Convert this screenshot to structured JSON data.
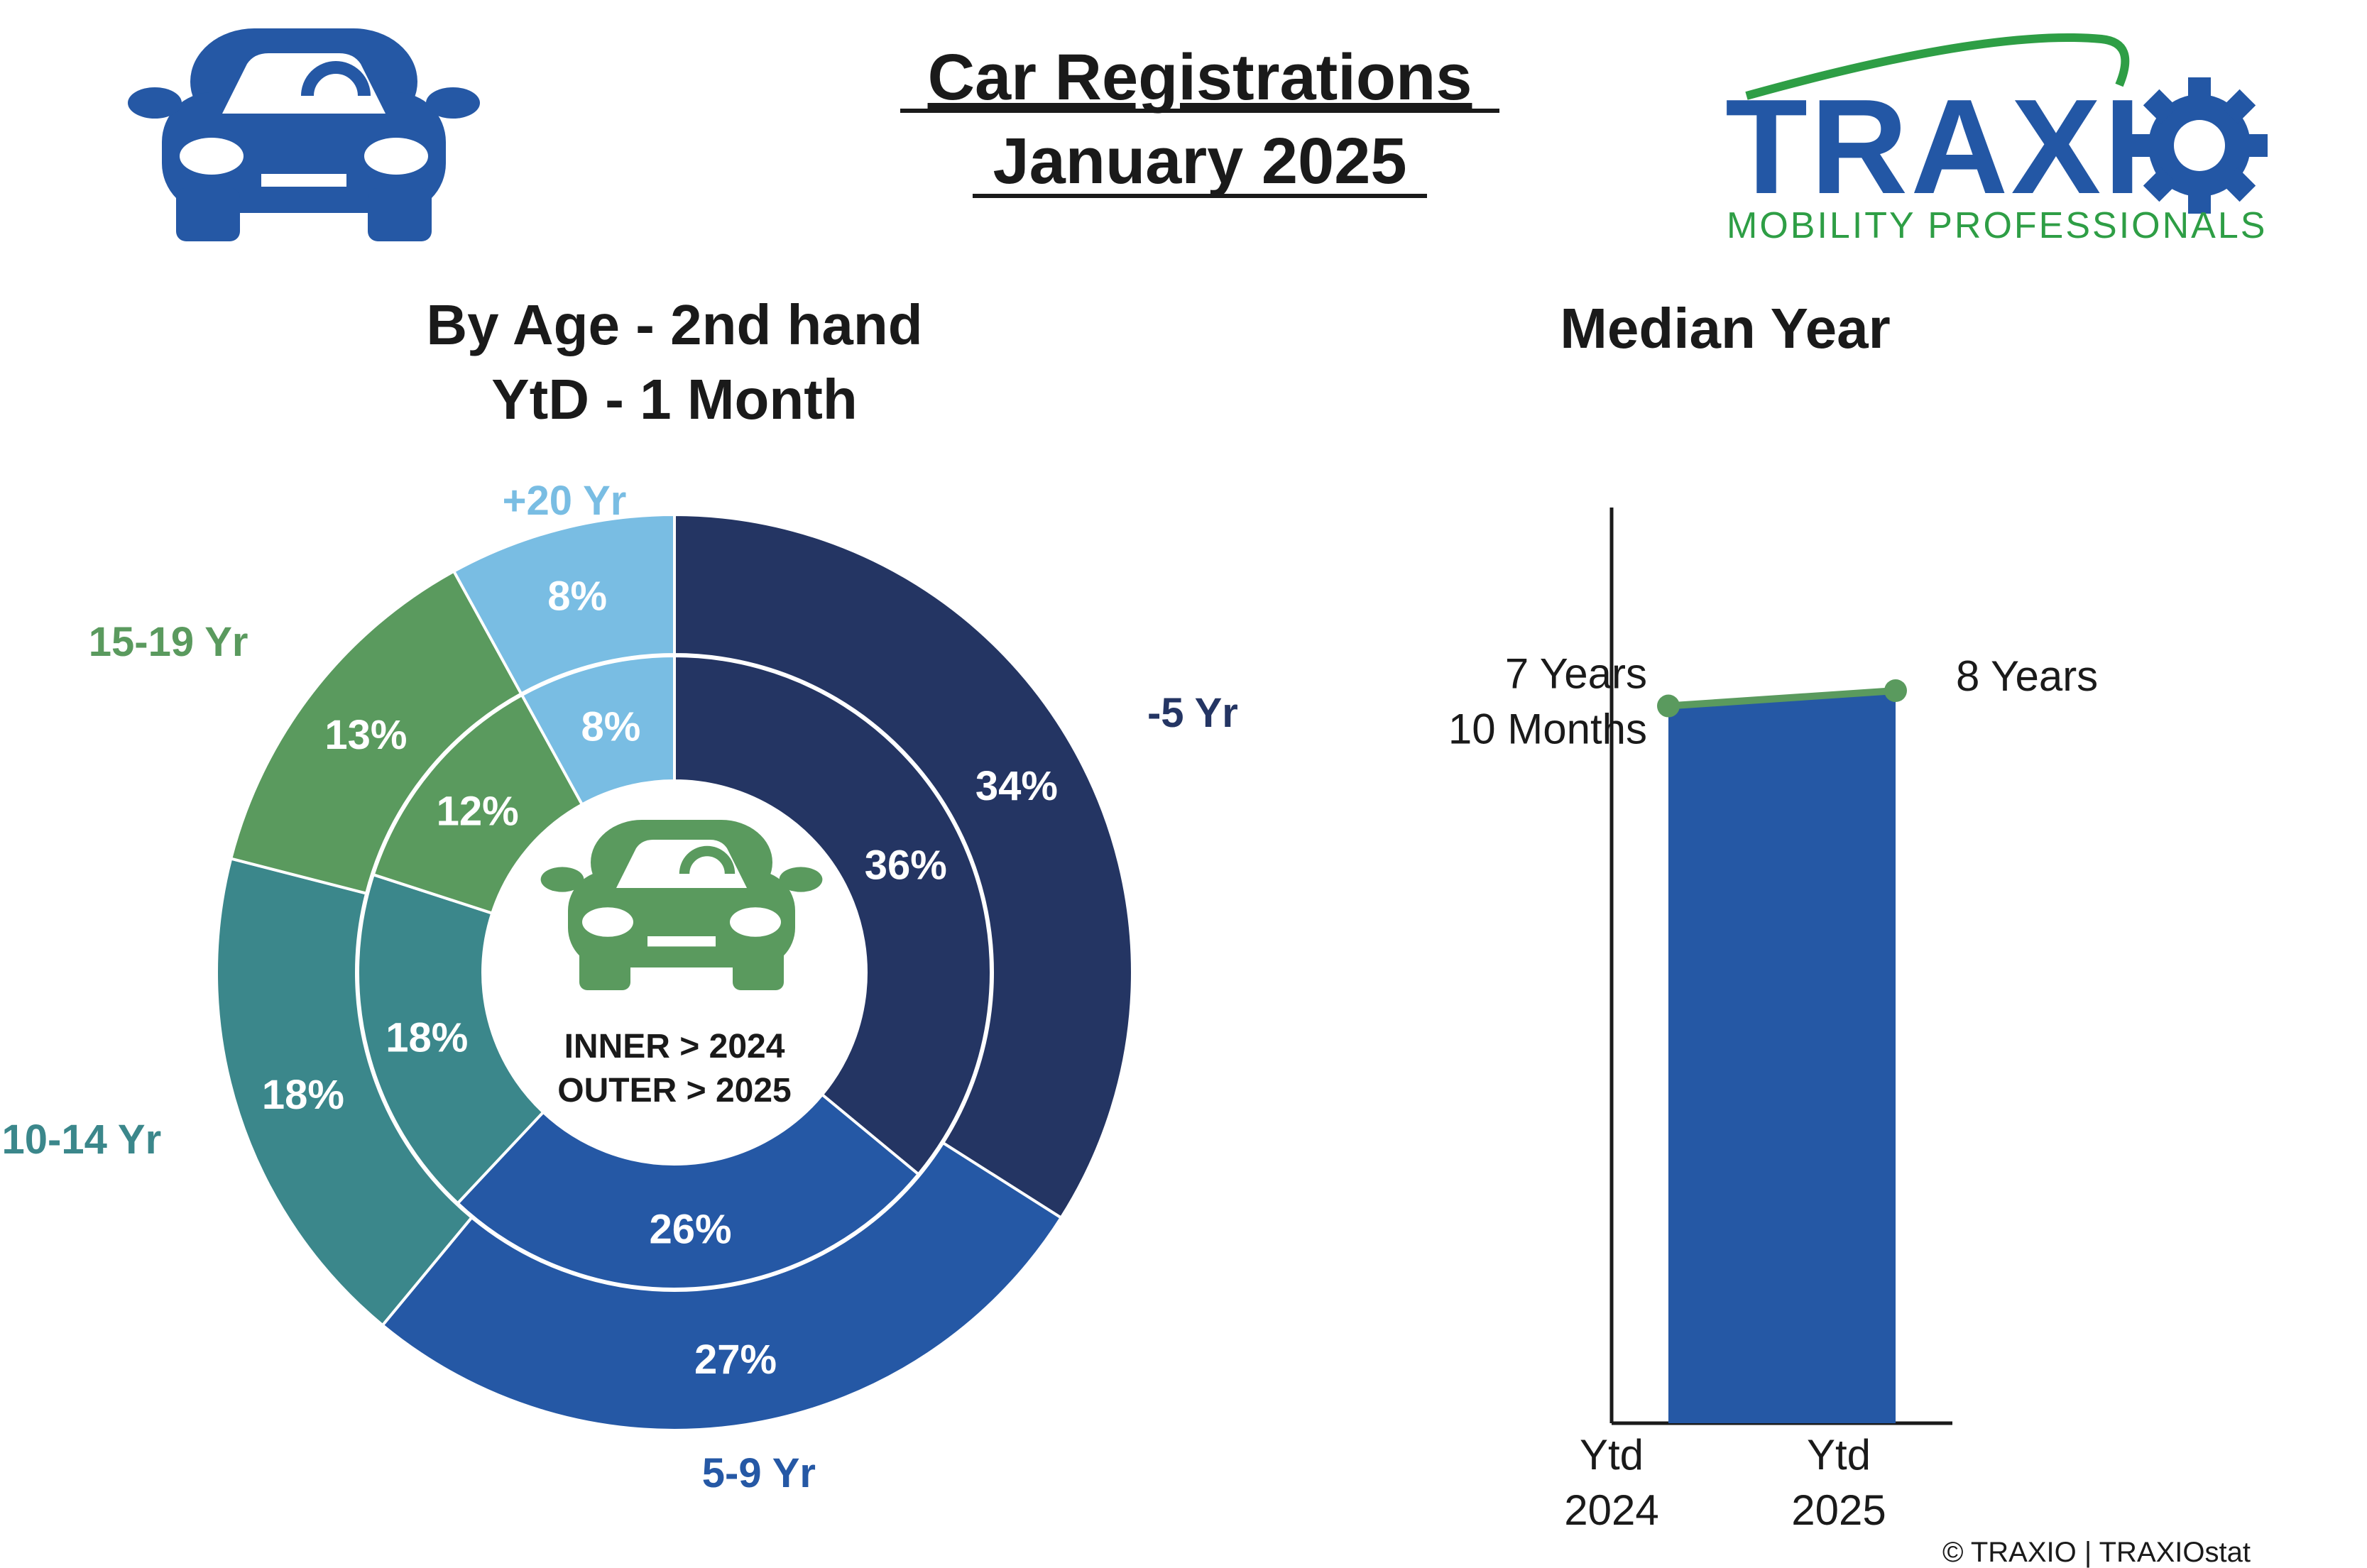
{
  "header": {
    "title_line1": "Car Registrations",
    "title_line2": "January 2025",
    "logo_word": "TRAXIO",
    "logo_tagline": "MOBILITY PROFESSIONALS",
    "car_icon": "car-icon",
    "logo_colors": {
      "primary": "#2357a5",
      "accent": "#2e9e45"
    }
  },
  "footer": {
    "credit": "© TRAXIO | TRAXIOstat"
  },
  "chart_data": [
    {
      "type": "pie",
      "variant": "double-donut",
      "title_line1": "By Age - 2nd hand",
      "title_line2": "YtD - 1 Month",
      "center_label_line1": "INNER > 2024",
      "center_label_line2": "OUTER > 2025",
      "center_icon": "car-icon",
      "categories": [
        "-5 Yr",
        "5-9 Yr",
        "10-14 Yr",
        "15-19 Yr",
        "+20 Yr"
      ],
      "category_colors": [
        "#243563",
        "#2558a5",
        "#3b878b",
        "#5a9a5e",
        "#79bde3"
      ],
      "series": [
        {
          "name": "2024",
          "ring": "inner",
          "values": [
            36,
            26,
            18,
            12,
            8
          ],
          "labels": [
            "36%",
            "26%",
            "18%",
            "12%",
            "8%"
          ]
        },
        {
          "name": "2025",
          "ring": "outer",
          "values": [
            34,
            27,
            18,
            13,
            8
          ],
          "labels": [
            "34%",
            "27%",
            "18%",
            "13%",
            "8%"
          ]
        }
      ]
    },
    {
      "type": "bar",
      "title": "Median Year",
      "categories": [
        "Ytd 2024",
        "Ytd 2025"
      ],
      "category_label_lines": [
        [
          "Ytd",
          "2024"
        ],
        [
          "Ytd",
          "2025"
        ]
      ],
      "values": [
        7.833,
        8.0
      ],
      "value_label_lines": [
        [
          "7 Years",
          "10 Months"
        ],
        [
          "8 Years"
        ]
      ],
      "bar_color": "#2558a5",
      "line_color": "#5a9a5e",
      "ylim": [
        0,
        10
      ]
    }
  ]
}
